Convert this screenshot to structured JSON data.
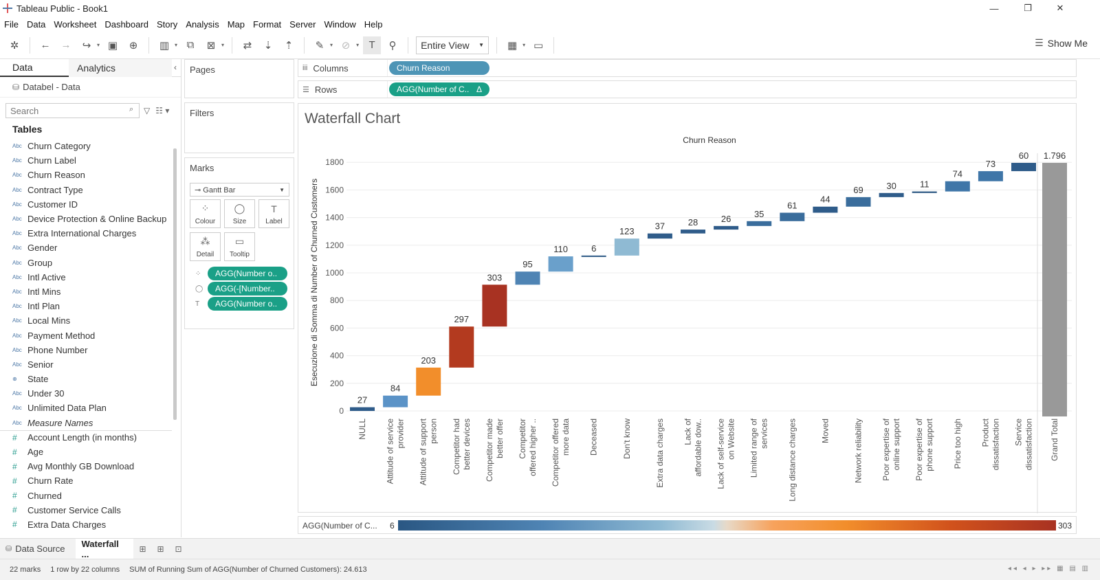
{
  "window": {
    "title": "Tableau Public - Book1",
    "min": "—",
    "restore": "❐",
    "close": "✕"
  },
  "menu": [
    "File",
    "Data",
    "Worksheet",
    "Dashboard",
    "Story",
    "Analysis",
    "Map",
    "Format",
    "Server",
    "Window",
    "Help"
  ],
  "toolbar": {
    "view_select": "Entire View",
    "show_me": "Show Me"
  },
  "data_pane": {
    "tabs": {
      "data": "Data",
      "analytics": "Analytics"
    },
    "datasource": "Databel - Data",
    "search_placeholder": "Search",
    "tables_title": "Tables",
    "dimensions": [
      {
        "type": "Abc",
        "name": "Churn Category"
      },
      {
        "type": "Abc",
        "name": "Churn Label"
      },
      {
        "type": "Abc",
        "name": "Churn Reason"
      },
      {
        "type": "Abc",
        "name": "Contract Type"
      },
      {
        "type": "Abc",
        "name": "Customer ID"
      },
      {
        "type": "Abc",
        "name": "Device Protection & Online Backup"
      },
      {
        "type": "Abc",
        "name": "Extra International Charges"
      },
      {
        "type": "Abc",
        "name": "Gender"
      },
      {
        "type": "Abc",
        "name": "Group"
      },
      {
        "type": "Abc",
        "name": "Intl Active"
      },
      {
        "type": "Abc",
        "name": "Intl Mins"
      },
      {
        "type": "Abc",
        "name": "Intl Plan"
      },
      {
        "type": "Abc",
        "name": "Local Mins"
      },
      {
        "type": "Abc",
        "name": "Payment Method"
      },
      {
        "type": "Abc",
        "name": "Phone Number"
      },
      {
        "type": "Abc",
        "name": "Senior"
      },
      {
        "type": "⊕",
        "name": "State"
      },
      {
        "type": "Abc",
        "name": "Under 30"
      },
      {
        "type": "Abc",
        "name": "Unlimited Data Plan"
      },
      {
        "type": "Abc",
        "name": "Measure Names"
      }
    ],
    "measures": [
      {
        "type": "#",
        "name": "Account Length (in months)"
      },
      {
        "type": "#",
        "name": "Age"
      },
      {
        "type": "#",
        "name": "Avg Monthly GB Download"
      },
      {
        "type": "#",
        "name": "Churn Rate"
      },
      {
        "type": "#",
        "name": "Churned"
      },
      {
        "type": "#",
        "name": "Customer Service Calls"
      },
      {
        "type": "#",
        "name": "Extra Data Charges"
      }
    ]
  },
  "cards": {
    "pages": "Pages",
    "filters": "Filters",
    "marks": "Marks",
    "mark_type": "Gantt Bar",
    "buttons": {
      "colour": "Colour",
      "size": "Size",
      "label": "Label",
      "detail": "Detail",
      "tooltip": "Tooltip"
    },
    "pills": [
      "AGG(Number o..",
      "AGG(-[Number..",
      "AGG(Number o.."
    ]
  },
  "shelves": {
    "columns_label": "Columns",
    "columns_pill": "Churn Reason",
    "rows_label": "Rows",
    "rows_pill": "AGG(Number of C..",
    "rows_pill_delta": "Δ"
  },
  "chart_data": {
    "type": "waterfall",
    "title": "Waterfall Chart",
    "column_header": "Churn Reason",
    "ylabel": "Esecuzione di Somma di Number of Churned Customers",
    "ylim": [
      0,
      1900
    ],
    "yticks": [
      0,
      200,
      400,
      600,
      800,
      1000,
      1200,
      1400,
      1600,
      1800
    ],
    "grid": true,
    "categories": [
      "NULL",
      "Attitude of service provider",
      "Attitude of support person",
      "Competitor had better devices",
      "Competitor made better offer",
      "Competitor offered higher ..",
      "Competitor offered more data",
      "Deceased",
      "Don't know",
      "Extra data charges",
      "Lack of affordable dow..",
      "Lack of self-service on Website",
      "Limited range of services",
      "Long distance charges",
      "Moved",
      "Network reliability",
      "Poor expertise of online support",
      "Poor expertise of phone support",
      "Price too high",
      "Product dissatisfaction",
      "Service dissatisfaction"
    ],
    "category_lines": [
      [
        "NULL"
      ],
      [
        "Attitude of service",
        "provider"
      ],
      [
        "Attitude of support",
        "person"
      ],
      [
        "Competitor had",
        "better devices"
      ],
      [
        "Competitor made",
        "better offer"
      ],
      [
        "Competitor",
        "offered higher .."
      ],
      [
        "Competitor offered",
        "more data"
      ],
      [
        "Deceased"
      ],
      [
        "Don't know"
      ],
      [
        "Extra data charges"
      ],
      [
        "Lack of",
        "affordable dow.."
      ],
      [
        "Lack of self-service",
        "on Website"
      ],
      [
        "Limited range of",
        "services"
      ],
      [
        "Long distance charges"
      ],
      [
        "Moved"
      ],
      [
        "Network reliability"
      ],
      [
        "Poor expertise of",
        "online support"
      ],
      [
        "Poor expertise of",
        "phone support"
      ],
      [
        "Price too high"
      ],
      [
        "Product",
        "dissatisfaction"
      ],
      [
        "Service",
        "dissatisfaction"
      ]
    ],
    "values": [
      27,
      84,
      203,
      297,
      303,
      95,
      110,
      6,
      123,
      37,
      28,
      26,
      35,
      61,
      44,
      69,
      30,
      11,
      74,
      73,
      60
    ],
    "colors": [
      "#2f5c8a",
      "#5b93c7",
      "#f28e2b",
      "#b33a1f",
      "#a83222",
      "#4f84b4",
      "#6aa0cb",
      "#2a5783",
      "#8fbad3",
      "#2f5c8a",
      "#2f5c8a",
      "#2f5c8a",
      "#3a6d9c",
      "#3a6d9c",
      "#2f5c8a",
      "#3a6d9c",
      "#2f5c8a",
      "#2a5783",
      "#3f76a8",
      "#3f76a8",
      "#2f5c8a"
    ],
    "grand_total": {
      "label": "Grand Total",
      "value": 1796,
      "display": "1.796",
      "color": "#999999"
    }
  },
  "legend": {
    "title": "AGG(Number of C...",
    "min": "6",
    "max": "303"
  },
  "sheet_tabs": {
    "datasource": "Data Source",
    "sheet": "Waterfall ..."
  },
  "status": {
    "marks": "22 marks",
    "dims": "1 row by 22 columns",
    "sum": "SUM of Running Sum of AGG(Number of Churned Customers): 24.613"
  }
}
